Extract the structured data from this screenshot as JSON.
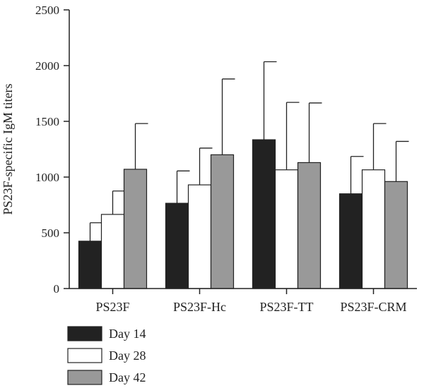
{
  "chart_data": {
    "type": "bar",
    "title": "",
    "xlabel": "",
    "ylabel": "PS23F-specific IgM titers",
    "categories": [
      "PS23F",
      "PS23F-Hc",
      "PS23F-TT",
      "PS23F-CRM"
    ],
    "series": [
      {
        "name": "Day 14",
        "color": "#222222",
        "values": [
          425,
          765,
          1335,
          850
        ],
        "errors": [
          165,
          290,
          700,
          335
        ]
      },
      {
        "name": "Day 28",
        "color": "#ffffff",
        "values": [
          665,
          930,
          1065,
          1065
        ],
        "errors": [
          210,
          330,
          605,
          415
        ]
      },
      {
        "name": "Day 42",
        "color": "#999999",
        "values": [
          1070,
          1200,
          1130,
          960
        ],
        "errors": [
          410,
          680,
          535,
          360
        ]
      }
    ],
    "ylim": [
      0,
      2500
    ],
    "yticks": [
      0,
      500,
      1000,
      1500,
      2000,
      2500
    ],
    "grid": false,
    "legend_position": "bottom-left"
  }
}
